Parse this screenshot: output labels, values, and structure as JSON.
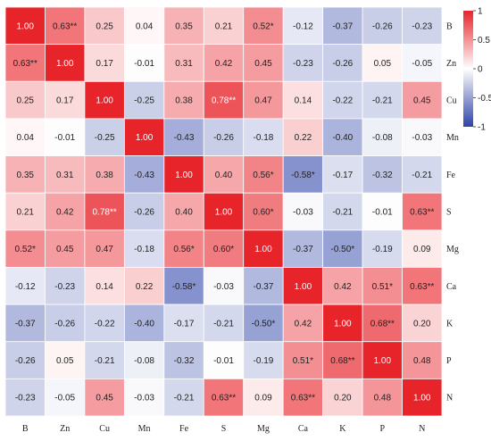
{
  "chart_data": {
    "type": "heatmap",
    "x_labels": [
      "B",
      "Zn",
      "Cu",
      "Mn",
      "Fe",
      "S",
      "Mg",
      "Ca",
      "K",
      "P",
      "N"
    ],
    "y_labels": [
      "B",
      "Zn",
      "Cu",
      "Mn",
      "Fe",
      "S",
      "Mg",
      "Ca",
      "K",
      "P",
      "N"
    ],
    "values": [
      [
        1.0,
        0.63,
        0.25,
        0.04,
        0.35,
        0.21,
        0.52,
        -0.12,
        -0.37,
        -0.26,
        -0.23
      ],
      [
        0.63,
        1.0,
        0.17,
        -0.01,
        0.31,
        0.42,
        0.45,
        -0.23,
        -0.26,
        0.05,
        -0.05
      ],
      [
        0.25,
        0.17,
        1.0,
        -0.25,
        0.38,
        0.78,
        0.47,
        0.14,
        -0.22,
        -0.21,
        0.45
      ],
      [
        0.04,
        -0.01,
        -0.25,
        1.0,
        -0.43,
        -0.26,
        -0.18,
        0.22,
        -0.4,
        -0.08,
        -0.03
      ],
      [
        0.35,
        0.31,
        0.38,
        -0.43,
        1.0,
        0.4,
        0.56,
        -0.58,
        -0.17,
        -0.32,
        -0.21
      ],
      [
        0.21,
        0.42,
        0.78,
        -0.26,
        0.4,
        1.0,
        0.6,
        -0.03,
        -0.21,
        -0.01,
        0.63
      ],
      [
        0.52,
        0.45,
        0.47,
        -0.18,
        0.56,
        0.6,
        1.0,
        -0.37,
        -0.5,
        -0.19,
        0.09
      ],
      [
        -0.12,
        -0.23,
        0.14,
        0.22,
        -0.58,
        -0.03,
        -0.37,
        1.0,
        0.42,
        0.51,
        0.63
      ],
      [
        -0.37,
        -0.26,
        -0.22,
        -0.4,
        -0.17,
        -0.21,
        -0.5,
        0.42,
        1.0,
        0.68,
        0.2
      ],
      [
        -0.26,
        0.05,
        -0.21,
        -0.08,
        -0.32,
        -0.01,
        -0.19,
        0.51,
        0.68,
        1.0,
        0.48
      ],
      [
        -0.23,
        -0.05,
        0.45,
        -0.03,
        -0.21,
        0.63,
        0.09,
        0.63,
        0.2,
        0.48,
        1.0
      ]
    ],
    "cell_labels": [
      [
        "1.00",
        "0.63**",
        "0.25",
        "0.04",
        "0.35",
        "0.21",
        "0.52*",
        "-0.12",
        "-0.37",
        "-0.26",
        "-0.23"
      ],
      [
        "0.63**",
        "1.00",
        "0.17",
        "-0.01",
        "0.31",
        "0.42",
        "0.45",
        "-0.23",
        "-0.26",
        "0.05",
        "-0.05"
      ],
      [
        "0.25",
        "0.17",
        "1.00",
        "-0.25",
        "0.38",
        "0.78**",
        "0.47",
        "0.14",
        "-0.22",
        "-0.21",
        "0.45"
      ],
      [
        "0.04",
        "-0.01",
        "-0.25",
        "1.00",
        "-0.43",
        "-0.26",
        "-0.18",
        "0.22",
        "-0.40",
        "-0.08",
        "-0.03"
      ],
      [
        "0.35",
        "0.31",
        "0.38",
        "-0.43",
        "1.00",
        "0.40",
        "0.56*",
        "-0.58*",
        "-0.17",
        "-0.32",
        "-0.21"
      ],
      [
        "0.21",
        "0.42",
        "0.78**",
        "-0.26",
        "0.40",
        "1.00",
        "0.60*",
        "-0.03",
        "-0.21",
        "-0.01",
        "0.63**"
      ],
      [
        "0.52*",
        "0.45",
        "0.47",
        "-0.18",
        "0.56*",
        "0.60*",
        "1.00",
        "-0.37",
        "-0.50*",
        "-0.19",
        "0.09"
      ],
      [
        "-0.12",
        "-0.23",
        "0.14",
        "0.22",
        "-0.58*",
        "-0.03",
        "-0.37",
        "1.00",
        "0.42",
        "0.51*",
        "0.63**"
      ],
      [
        "-0.37",
        "-0.26",
        "-0.22",
        "-0.40",
        "-0.17",
        "-0.21",
        "-0.50*",
        "0.42",
        "1.00",
        "0.68**",
        "0.20"
      ],
      [
        "-0.26",
        "0.05",
        "-0.21",
        "-0.08",
        "-0.32",
        "-0.01",
        "-0.19",
        "0.51*",
        "0.68**",
        "1.00",
        "0.48"
      ],
      [
        "-0.23",
        "-0.05",
        "0.45",
        "-0.03",
        "-0.21",
        "0.63**",
        "0.09",
        "0.63**",
        "0.20",
        "0.48",
        "1.00"
      ]
    ],
    "colorbar": {
      "range": [
        -1,
        1
      ],
      "ticks": [
        "1",
        "0.5",
        "0",
        "-0.5",
        "-1"
      ],
      "tick_values": [
        1,
        0.5,
        0,
        -0.5,
        -1
      ],
      "colors": {
        "positive": "#e8242b",
        "zero": "#ffffff",
        "negative": "#2d43a8"
      }
    },
    "title": "",
    "xlabel": "",
    "ylabel": "",
    "x_label_position": "bottom",
    "y_label_position": "right",
    "grid": true
  }
}
